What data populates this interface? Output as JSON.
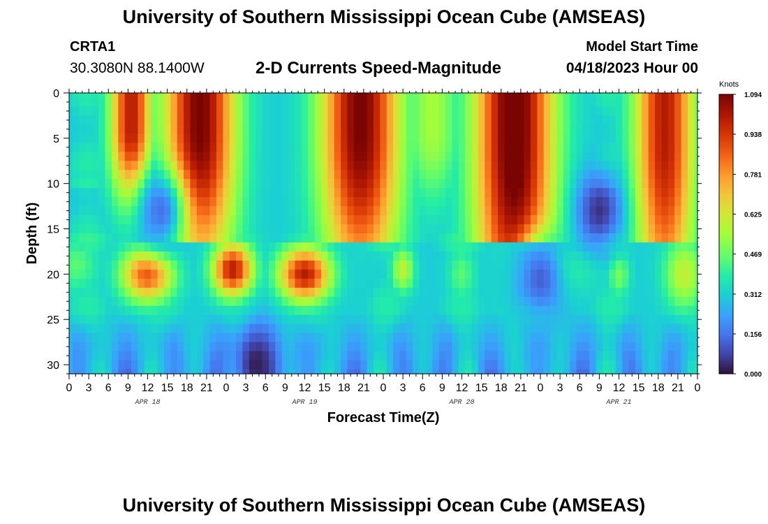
{
  "header": {
    "title": "University of Southern Mississippi Ocean Cube (AMSEAS)",
    "station_id": "CRTA1",
    "station_coords": "30.3080N  88.1400W",
    "subtitle": "2-D Currents Speed-Magnitude",
    "model_start_label": "Model Start Time",
    "model_start_value": "04/18/2023 Hour 00"
  },
  "footer": {
    "title": "University of Southern Mississippi Ocean Cube (AMSEAS)"
  },
  "chart_data": {
    "type": "heatmap",
    "title": "2-D Currents Speed-Magnitude",
    "xlabel": "Forecast Time(Z)",
    "ylabel": "Depth (ft)",
    "x_range_hours": [
      0,
      96
    ],
    "y_range_ft": [
      0,
      31
    ],
    "y_reversed": true,
    "x_tick_labels": [
      "0",
      "3",
      "6",
      "9",
      "12",
      "15",
      "18",
      "21",
      "0",
      "3",
      "6",
      "9",
      "12",
      "15",
      "18",
      "21",
      "0",
      "3",
      "6",
      "9",
      "12",
      "15",
      "18",
      "21",
      "0",
      "3",
      "6",
      "9",
      "12",
      "15",
      "18",
      "21",
      "0"
    ],
    "y_ticks": [
      0,
      5,
      10,
      15,
      20,
      25,
      30
    ],
    "day_labels": [
      {
        "label": "APR 18",
        "hour": 12
      },
      {
        "label": "APR 19",
        "hour": 36
      },
      {
        "label": "APR 20",
        "hour": 60
      },
      {
        "label": "APR 21",
        "hour": 84
      }
    ],
    "colorbar": {
      "unit": "Knots",
      "min": 0.0,
      "max": 1.094,
      "tick_labels": [
        "1.094",
        "0.938",
        "0.781",
        "0.625",
        "0.469",
        "0.312",
        "0.156",
        "0.000"
      ],
      "tick_values": [
        1.094,
        0.938,
        0.781,
        0.625,
        0.469,
        0.312,
        0.156,
        0.0
      ]
    },
    "grid_resolution": {
      "time_steps": 97,
      "depth_steps": 32
    },
    "features": [
      {
        "time_center": 9.5,
        "time_width": 2.2,
        "depth_center": 4,
        "depth_spread": 8,
        "speed": 1.0,
        "layer": "upper"
      },
      {
        "time_center": 20,
        "time_width": 3.8,
        "depth_center": 4,
        "depth_spread": 16,
        "speed": 1.1,
        "layer": "upper"
      },
      {
        "time_center": 39.5,
        "time_width": 1.5,
        "depth_center": 4,
        "depth_spread": 7,
        "speed": 0.5,
        "layer": "upper"
      },
      {
        "time_center": 44.5,
        "time_width": 4.2,
        "depth_center": 4,
        "depth_spread": 18,
        "speed": 1.1,
        "layer": "upper"
      },
      {
        "time_center": 55.5,
        "time_width": 2.8,
        "depth_center": 4,
        "depth_spread": 8,
        "speed": 0.55,
        "layer": "upper"
      },
      {
        "time_center": 68,
        "time_width": 4.2,
        "depth_center": 5,
        "depth_spread": 25,
        "speed": 1.15,
        "layer": "upper"
      },
      {
        "time_center": 91,
        "time_width": 3.2,
        "depth_center": 5,
        "depth_spread": 20,
        "speed": 1.0,
        "layer": "upper"
      },
      {
        "time_center": 12,
        "time_width": 2.8,
        "depth_center": 20,
        "depth_spread": 3,
        "speed": 0.9,
        "layer": "lower"
      },
      {
        "time_center": 1,
        "time_width": 2.5,
        "depth_center": 19,
        "depth_spread": 3,
        "speed": 0.45,
        "layer": "lower"
      },
      {
        "time_center": 25,
        "time_width": 2.2,
        "depth_center": 19.5,
        "depth_spread": 3,
        "speed": 1.0,
        "layer": "lower"
      },
      {
        "time_center": 36,
        "time_width": 2.8,
        "depth_center": 20,
        "depth_spread": 3,
        "speed": 1.0,
        "layer": "lower"
      },
      {
        "time_center": 51,
        "time_width": 1.2,
        "depth_center": 19.5,
        "depth_spread": 2.5,
        "speed": 0.6,
        "layer": "lower"
      },
      {
        "time_center": 60,
        "time_width": 1.5,
        "depth_center": 20,
        "depth_spread": 3,
        "speed": 0.45,
        "layer": "lower"
      },
      {
        "time_center": 75,
        "time_width": 4.5,
        "depth_center": 19.5,
        "depth_spread": 3,
        "speed": 0.42,
        "layer": "lower"
      },
      {
        "time_center": 84,
        "time_width": 1.2,
        "depth_center": 20,
        "depth_spread": 2.5,
        "speed": 0.5,
        "layer": "lower"
      },
      {
        "time_center": 94,
        "time_width": 2.2,
        "depth_center": 20,
        "depth_spread": 4,
        "speed": 0.6,
        "layer": "lower"
      }
    ],
    "minima": [
      {
        "time_center": 28.5,
        "depth_center": 30,
        "speed": 0.02
      },
      {
        "time_center": 81,
        "depth_center": 13,
        "speed": 0.05
      },
      {
        "time_center": 14,
        "depth_center": 13,
        "speed": 0.15
      },
      {
        "time_center": 72,
        "depth_center": 20.5,
        "speed": 0.12
      }
    ]
  }
}
